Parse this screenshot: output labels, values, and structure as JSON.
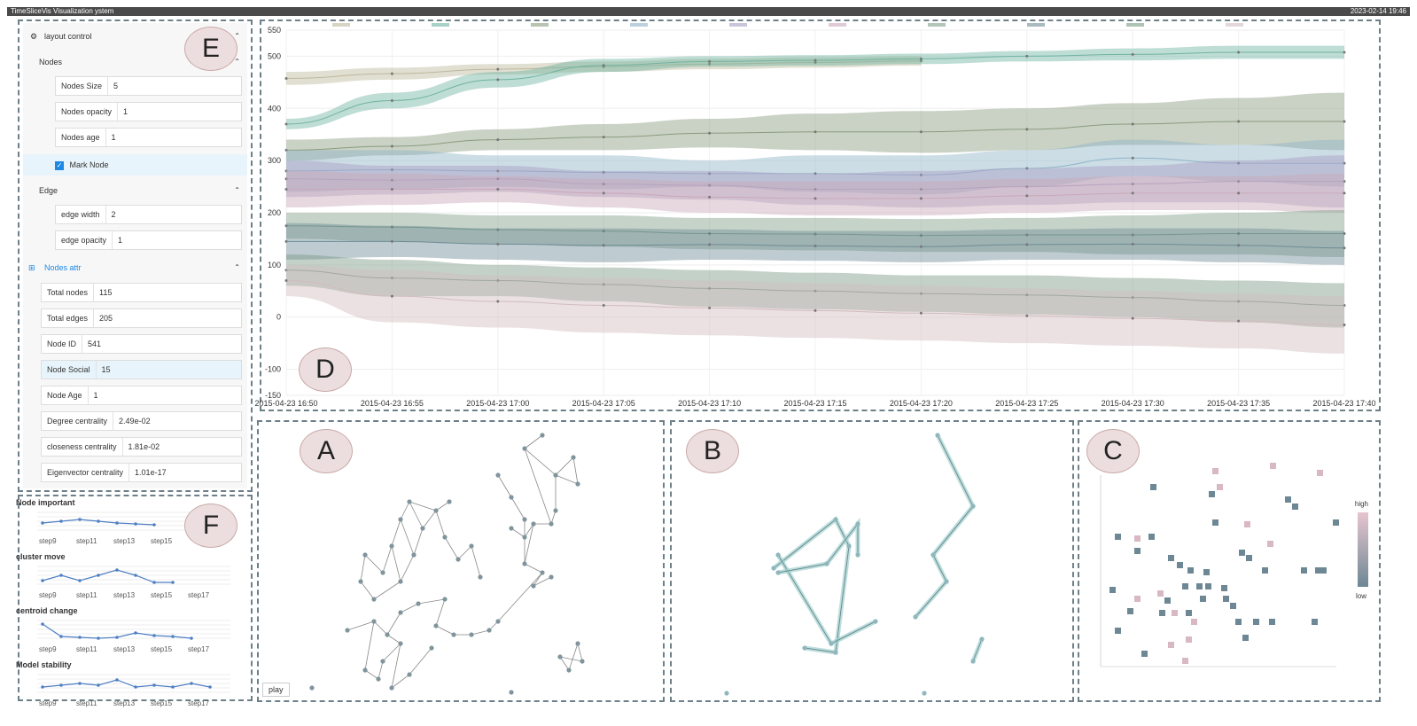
{
  "app": {
    "title": "TimeSliceVis Visualization ystem",
    "datetime": "2023-02-14 19:46"
  },
  "panels": {
    "a": "A",
    "b": "B",
    "c": "C",
    "d": "D",
    "e": "E",
    "f": "F"
  },
  "layout_control": {
    "title": "layout control",
    "nodes_section": "Nodes",
    "nodes_size": {
      "label": "Nodes Size",
      "value": "5"
    },
    "nodes_opacity": {
      "label": "Nodes opacity",
      "value": "1"
    },
    "nodes_age": {
      "label": "Nodes age",
      "value": "1"
    },
    "mark_node": "Mark Node",
    "edge_section": "Edge",
    "edge_width": {
      "label": "edge width",
      "value": "2"
    },
    "edge_opacity": {
      "label": "edge opacity",
      "value": "1"
    }
  },
  "nodes_attr": {
    "title": "Nodes attr",
    "total_nodes": {
      "label": "Total nodes",
      "value": "115"
    },
    "total_edges": {
      "label": "Total edges",
      "value": "205"
    },
    "node_id": {
      "label": "Node ID",
      "value": "541"
    },
    "node_social": {
      "label": "Node Social",
      "value": "15"
    },
    "node_age": {
      "label": "Node Age",
      "value": "1"
    },
    "degree": {
      "label": "Degree centrality",
      "value": "2.49e-02"
    },
    "closeness": {
      "label": "closeness centrality",
      "value": "1.81e-02"
    },
    "eigen": {
      "label": "Eigenvector centrality",
      "value": "1.01e-17"
    }
  },
  "metrics": [
    {
      "title": "Node important",
      "ticks": [
        "step9",
        "step11",
        "step13",
        "step15"
      ],
      "values": [
        0.5,
        0.6,
        0.7,
        0.6,
        0.5,
        0.45,
        0.4
      ]
    },
    {
      "title": "cluster move",
      "ticks": [
        "step9",
        "step11",
        "step13",
        "step15",
        "step17"
      ],
      "values": [
        0.3,
        0.6,
        0.3,
        0.6,
        0.9,
        0.6,
        0.2,
        0.2
      ]
    },
    {
      "title": "centroid change",
      "ticks": [
        "step9",
        "step11",
        "step13",
        "step15",
        "step17"
      ],
      "values": [
        0.9,
        0.2,
        0.15,
        0.1,
        0.15,
        0.4,
        0.25,
        0.2,
        0.1
      ]
    },
    {
      "title": "Model stability",
      "ticks": [
        "step9",
        "step11",
        "step13",
        "step15",
        "step17"
      ],
      "values": [
        0.4,
        0.5,
        0.6,
        0.5,
        0.8,
        0.4,
        0.5,
        0.4,
        0.6,
        0.4
      ]
    }
  ],
  "play_label": "play",
  "heatmap": {
    "high": "high",
    "low": "low"
  },
  "chart_data": {
    "type": "area",
    "x": [
      "2015-04-23 16:50",
      "2015-04-23 16:55",
      "2015-04-23 17:00",
      "2015-04-23 17:05",
      "2015-04-23 17:10",
      "2015-04-23 17:15",
      "2015-04-23 17:20",
      "2015-04-23 17:25",
      "2015-04-23 17:30",
      "2015-04-23 17:35",
      "2015-04-23 17:40"
    ],
    "yticks": [
      550,
      500,
      400,
      300,
      200,
      100,
      0,
      -100,
      -150
    ],
    "ylim": [
      -150,
      550
    ],
    "series": [
      {
        "color": "#bdb79b",
        "lower": [
          445,
          455,
          465,
          470,
          475,
          478,
          482,
          null,
          null,
          null,
          null
        ],
        "upper": [
          470,
          478,
          485,
          490,
          495,
          498,
          500,
          null,
          null,
          null,
          null
        ]
      },
      {
        "color": "#6fb3a0",
        "lower": [
          360,
          400,
          440,
          470,
          480,
          482,
          485,
          490,
          492,
          495,
          495
        ],
        "upper": [
          380,
          430,
          470,
          495,
          500,
          502,
          505,
          510,
          515,
          520,
          520
        ]
      },
      {
        "color": "#8a9b7e",
        "lower": [
          300,
          310,
          320,
          320,
          325,
          320,
          315,
          320,
          330,
          330,
          320
        ],
        "upper": [
          340,
          345,
          360,
          370,
          380,
          390,
          395,
          400,
          410,
          420,
          430
        ]
      },
      {
        "color": "#8fb3c8",
        "lower": [
          240,
          245,
          250,
          245,
          250,
          240,
          235,
          250,
          270,
          260,
          250
        ],
        "upper": [
          320,
          320,
          310,
          310,
          300,
          310,
          310,
          320,
          340,
          330,
          340
        ]
      },
      {
        "color": "#a99ec3",
        "lower": [
          230,
          235,
          240,
          230,
          225,
          215,
          210,
          215,
          220,
          220,
          210
        ],
        "upper": [
          300,
          290,
          290,
          280,
          280,
          275,
          280,
          285,
          290,
          300,
          310
        ]
      },
      {
        "color": "#c9a9b9",
        "lower": [
          210,
          215,
          220,
          210,
          200,
          195,
          195,
          200,
          205,
          205,
          200
        ],
        "upper": [
          280,
          275,
          270,
          265,
          260,
          260,
          260,
          265,
          270,
          270,
          275
        ]
      },
      {
        "color": "#7f9e88",
        "lower": [
          150,
          145,
          140,
          135,
          130,
          128,
          125,
          125,
          120,
          120,
          115
        ],
        "upper": [
          200,
          200,
          195,
          195,
          190,
          190,
          188,
          190,
          195,
          200,
          205
        ]
      },
      {
        "color": "#6f8c96",
        "lower": [
          110,
          115,
          110,
          105,
          110,
          108,
          105,
          110,
          110,
          105,
          100
        ],
        "upper": [
          180,
          175,
          170,
          170,
          168,
          165,
          165,
          168,
          170,
          170,
          165
        ]
      },
      {
        "color": "#7a9a86",
        "lower": [
          60,
          40,
          40,
          30,
          20,
          15,
          10,
          5,
          0,
          -10,
          -20
        ],
        "upper": [
          120,
          110,
          100,
          95,
          90,
          85,
          80,
          80,
          75,
          70,
          65
        ]
      },
      {
        "color": "#d2bcbf",
        "lower": [
          40,
          -10,
          -20,
          -30,
          -35,
          -40,
          -45,
          -50,
          -55,
          -60,
          -70
        ],
        "upper": [
          100,
          90,
          80,
          75,
          70,
          65,
          60,
          55,
          50,
          45,
          40
        ]
      }
    ]
  }
}
